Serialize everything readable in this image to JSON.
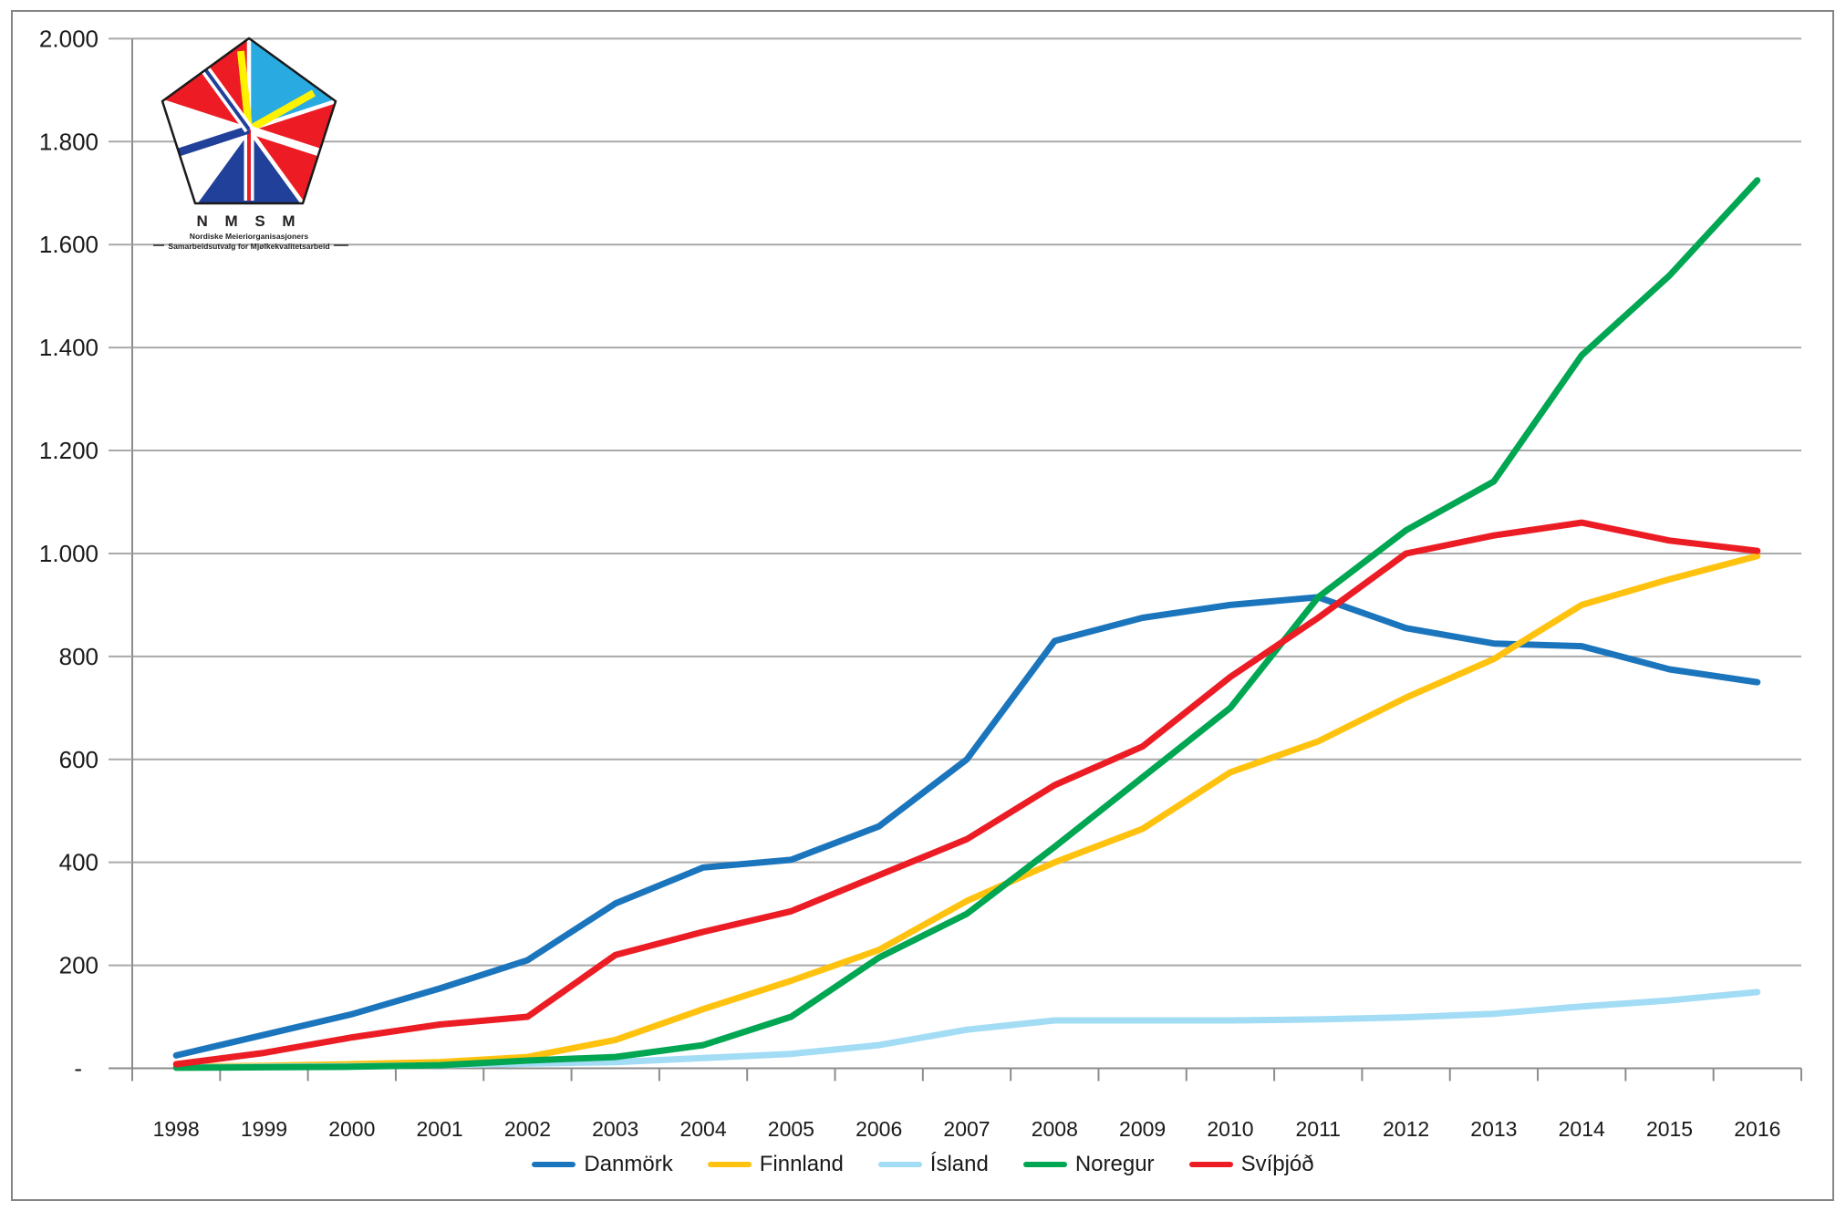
{
  "logo": {
    "acronym": "N M S M",
    "line1": "Nordiske Meieriorganisasjoners",
    "line2": "Samarbeidsutvalg for Mjølkekvalitetsarbeid"
  },
  "chart_data": {
    "type": "line",
    "x": [
      1998,
      1999,
      2000,
      2001,
      2002,
      2003,
      2004,
      2005,
      2006,
      2007,
      2008,
      2009,
      2010,
      2011,
      2012,
      2013,
      2014,
      2015,
      2016
    ],
    "series": [
      {
        "name": "Danmörk",
        "color": "#1B75BC",
        "values": [
          25,
          65,
          105,
          155,
          210,
          320,
          390,
          405,
          470,
          600,
          830,
          875,
          900,
          915,
          855,
          825,
          820,
          775,
          750
        ]
      },
      {
        "name": "Finnland",
        "color": "#FFC20E",
        "values": [
          3,
          5,
          8,
          12,
          22,
          55,
          115,
          170,
          230,
          325,
          400,
          465,
          575,
          635,
          720,
          795,
          900,
          950,
          995
        ]
      },
      {
        "name": "Ísland",
        "color": "#A2DCF5",
        "values": [
          2,
          3,
          4,
          6,
          9,
          12,
          20,
          28,
          45,
          75,
          93,
          93,
          93,
          95,
          99,
          106,
          120,
          132,
          148
        ]
      },
      {
        "name": "Noregur",
        "color": "#00A651",
        "values": [
          1,
          2,
          3,
          6,
          15,
          22,
          45,
          100,
          215,
          300,
          430,
          565,
          700,
          915,
          1045,
          1140,
          1385,
          1540,
          1725
        ]
      },
      {
        "name": "Svíþjóð",
        "color": "#EC1C24",
        "values": [
          8,
          30,
          60,
          85,
          100,
          220,
          265,
          305,
          375,
          445,
          550,
          625,
          760,
          875,
          1000,
          1035,
          1060,
          1025,
          1005
        ]
      }
    ],
    "title": "",
    "xlabel": "",
    "ylabel": "",
    "ylim": [
      0,
      2000
    ],
    "y_tick_step": 200,
    "y_tick_labels": [
      "-",
      "200",
      "400",
      "600",
      "800",
      "1.000",
      "1.200",
      "1.400",
      "1.600",
      "1.800",
      "2.000"
    ],
    "grid": true,
    "legend_position": "bottom"
  },
  "colors": {
    "background": "#FFFFFF",
    "border": "#858585",
    "gridline": "#A9A9A9",
    "axis": "#8C8C8C",
    "label_text": "#1A1A1A",
    "logo_red": "#ED1C24",
    "logo_dark_blue": "#21409A",
    "logo_light_blue": "#29ABE2",
    "logo_yellow": "#FFF200",
    "logo_white": "#FFFFFF"
  }
}
